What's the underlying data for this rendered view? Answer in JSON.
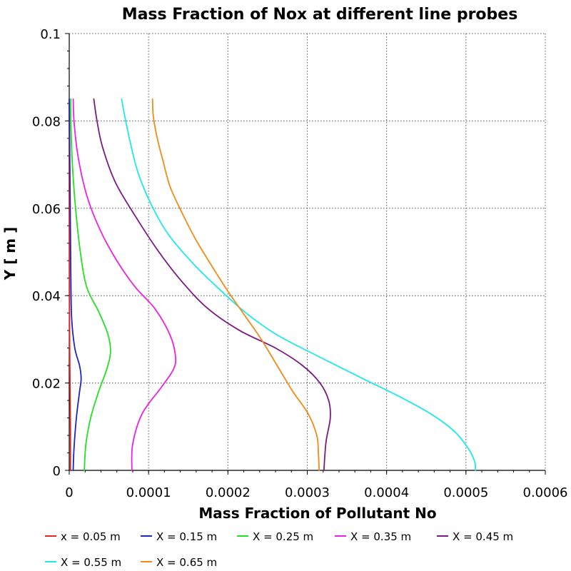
{
  "chart_data": {
    "type": "line",
    "title": "Mass Fraction of Nox at different line probes",
    "xlabel": "Mass Fraction of Pollutant No",
    "ylabel": "Y [ m ]",
    "xlim": [
      0,
      0.0006
    ],
    "ylim": [
      0,
      0.1
    ],
    "x_ticks": [
      "0",
      "0.0001",
      "0.0002",
      "0.0003",
      "0.0004",
      "0.0005",
      "0.0006"
    ],
    "y_ticks": [
      "0",
      "0.02",
      "0.04",
      "0.06",
      "0.08",
      "0.1"
    ],
    "grid": true,
    "legend_position": "bottom",
    "series": [
      {
        "name": "x = 0.05 m",
        "color": "#e8221e",
        "points": [
          [
            1.5e-06,
            0
          ],
          [
            1.5e-06,
            0.01
          ],
          [
            1e-06,
            0.02
          ],
          [
            5e-07,
            0.03
          ],
          [
            3e-07,
            0.04
          ],
          [
            2e-07,
            0.05
          ],
          [
            1e-07,
            0.06
          ],
          [
            0,
            0.07
          ],
          [
            0,
            0.085
          ]
        ]
      },
      {
        "name": "X = 0.15 m",
        "color": "#1f24c4",
        "points": [
          [
            5e-06,
            0
          ],
          [
            6e-06,
            0.005
          ],
          [
            9e-06,
            0.012
          ],
          [
            1.3e-05,
            0.018
          ],
          [
            1.5e-05,
            0.021
          ],
          [
            1.3e-05,
            0.024
          ],
          [
            7e-06,
            0.028
          ],
          [
            3e-06,
            0.035
          ],
          [
            2e-06,
            0.045
          ],
          [
            1.5e-06,
            0.055
          ],
          [
            1e-06,
            0.065
          ],
          [
            5e-07,
            0.075
          ],
          [
            0,
            0.085
          ]
        ]
      },
      {
        "name": "X = 0.25 m",
        "color": "#22e022",
        "points": [
          [
            1.9e-05,
            0
          ],
          [
            2.1e-05,
            0.006
          ],
          [
            2.7e-05,
            0.012
          ],
          [
            3.7e-05,
            0.018
          ],
          [
            4.7e-05,
            0.023
          ],
          [
            5.2e-05,
            0.027
          ],
          [
            4.9e-05,
            0.031
          ],
          [
            3.8e-05,
            0.036
          ],
          [
            2.2e-05,
            0.042
          ],
          [
            1.4e-05,
            0.05
          ],
          [
            8e-06,
            0.06
          ],
          [
            4e-06,
            0.07
          ],
          [
            2e-06,
            0.08
          ],
          [
            2e-06,
            0.085
          ]
        ]
      },
      {
        "name": "X = 0.35 m",
        "color": "#ec20e8",
        "points": [
          [
            7.9e-05,
            0
          ],
          [
            8e-05,
            0.006
          ],
          [
            9.2e-05,
            0.013
          ],
          [
            0.000116,
            0.019
          ],
          [
            0.000131,
            0.023
          ],
          [
            0.000134,
            0.026
          ],
          [
            0.000127,
            0.031
          ],
          [
            0.000108,
            0.037
          ],
          [
            8.3e-05,
            0.042
          ],
          [
            6e-05,
            0.048
          ],
          [
            3.9e-05,
            0.055
          ],
          [
            2.2e-05,
            0.063
          ],
          [
            1.1e-05,
            0.072
          ],
          [
            6e-06,
            0.08
          ],
          [
            5e-06,
            0.085
          ]
        ]
      },
      {
        "name": "X = 0.45 m",
        "color": "#7a1a82",
        "points": [
          [
            0.000321,
            0
          ],
          [
            0.000322,
            0.003
          ],
          [
            0.000324,
            0.007
          ],
          [
            0.000329,
            0.012
          ],
          [
            0.000327,
            0.016
          ],
          [
            0.000316,
            0.02
          ],
          [
            0.000294,
            0.024
          ],
          [
            0.00026,
            0.028
          ],
          [
            0.000215,
            0.032
          ],
          [
            0.000175,
            0.037
          ],
          [
            0.000143,
            0.043
          ],
          [
            0.000113,
            0.05
          ],
          [
            8.4e-05,
            0.058
          ],
          [
            5.8e-05,
            0.066
          ],
          [
            4.2e-05,
            0.074
          ],
          [
            3.5e-05,
            0.08
          ],
          [
            3.1e-05,
            0.085
          ]
        ]
      },
      {
        "name": "X = 0.55 m",
        "color": "#1fe8e8",
        "points": [
          [
            0.000512,
            0
          ],
          [
            0.000511,
            0.002
          ],
          [
            0.000503,
            0.005
          ],
          [
            0.000485,
            0.009
          ],
          [
            0.000455,
            0.013
          ],
          [
            0.000415,
            0.017
          ],
          [
            0.00037,
            0.021
          ],
          [
            0.000315,
            0.026
          ],
          [
            0.000262,
            0.031
          ],
          [
            0.000223,
            0.036
          ],
          [
            0.000192,
            0.041
          ],
          [
            0.000158,
            0.047
          ],
          [
            0.000125,
            0.054
          ],
          [
            0.000103,
            0.061
          ],
          [
            8.7e-05,
            0.068
          ],
          [
            7.7e-05,
            0.075
          ],
          [
            6.9e-05,
            0.082
          ],
          [
            6.6e-05,
            0.085
          ]
        ]
      },
      {
        "name": "X = 0.65 m",
        "color": "#f28a17",
        "points": [
          [
            0.000315,
            0
          ],
          [
            0.000314,
            0.004
          ],
          [
            0.000312,
            0.008
          ],
          [
            0.000301,
            0.013
          ],
          [
            0.000282,
            0.018
          ],
          [
            0.000262,
            0.024
          ],
          [
            0.000242,
            0.03
          ],
          [
            0.000223,
            0.035
          ],
          [
            0.0002,
            0.041
          ],
          [
            0.000179,
            0.047
          ],
          [
            0.000159,
            0.053
          ],
          [
            0.000142,
            0.059
          ],
          [
            0.000127,
            0.065
          ],
          [
            0.000118,
            0.071
          ],
          [
            0.000111,
            0.076
          ],
          [
            0.000106,
            0.081
          ],
          [
            0.000105,
            0.085
          ]
        ]
      }
    ]
  }
}
